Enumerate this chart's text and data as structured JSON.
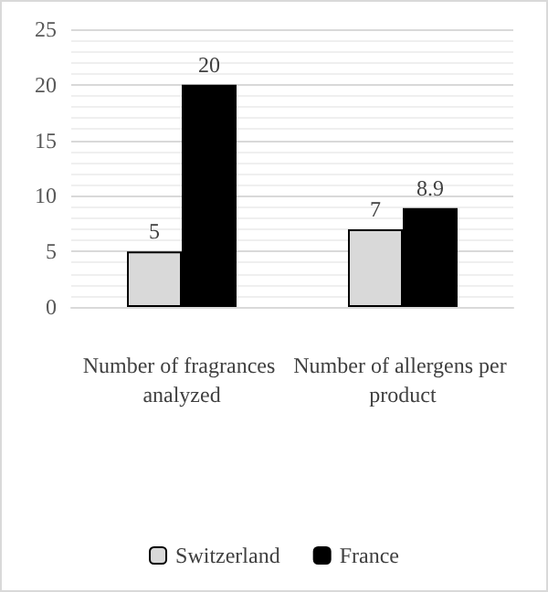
{
  "chart_data": {
    "type": "bar",
    "categories": [
      "Number of fragrances analyzed",
      "Number of allergens per product"
    ],
    "series": [
      {
        "name": "Switzerland",
        "color": "#d9d9d9",
        "values": [
          5,
          7
        ]
      },
      {
        "name": "France",
        "color": "#000000",
        "values": [
          20,
          8.9
        ]
      }
    ],
    "ylim": [
      0,
      25
    ],
    "yticks": [
      0,
      5,
      10,
      15,
      20,
      25
    ],
    "grid": "y",
    "legend": "bottom",
    "data_labels": true
  }
}
